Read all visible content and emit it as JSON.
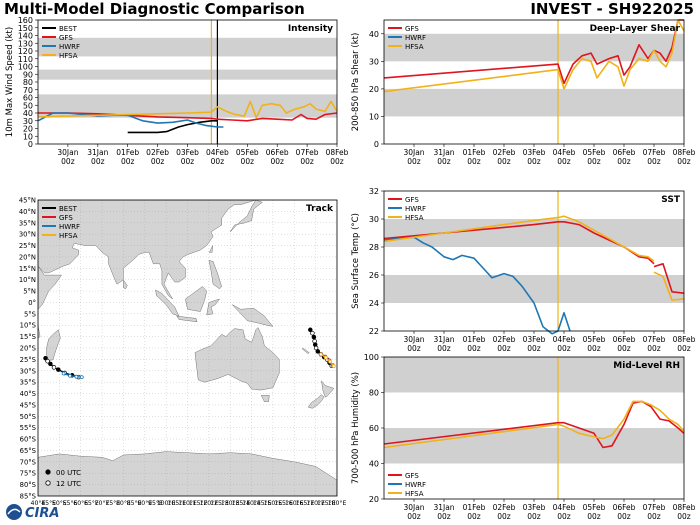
{
  "header": {
    "title": "Multi-Model Diagnostic Comparison",
    "storm_id": "INVEST - SH922025"
  },
  "footer": {
    "logo_text": "CIRA"
  },
  "colors": {
    "BEST": "#000000",
    "GFS": "#e0141e",
    "HWRF": "#1f77b4",
    "HFSA": "#f0b21a",
    "band": "#d0d0d0"
  },
  "time_axis": {
    "tick_labels": [
      "30Jan",
      "31Jan",
      "01Feb",
      "02Feb",
      "03Feb",
      "04Feb",
      "05Feb",
      "06Feb",
      "07Feb",
      "08Feb"
    ],
    "tick_sub": "00z"
  },
  "chart_data": [
    {
      "id": "intensity",
      "type": "line",
      "title": "Intensity",
      "ylabel": "10m Max Wind Speed (kt)",
      "ylim": [
        0,
        160
      ],
      "xlim": [
        -1.0,
        9.0
      ],
      "yticks": [
        0,
        10,
        20,
        30,
        40,
        50,
        60,
        70,
        80,
        90,
        100,
        110,
        120,
        130,
        140,
        150,
        160
      ],
      "bands": [
        [
          34,
          64
        ],
        [
          83,
          96
        ],
        [
          113,
          137
        ]
      ],
      "vlines": [
        {
          "x": 4.8,
          "color": "#f0b21a"
        },
        {
          "x": 5.0,
          "color": "#000000"
        }
      ],
      "legend": [
        "BEST",
        "GFS",
        "HWRF",
        "HFSA"
      ],
      "legend_position": "top-left",
      "series": [
        {
          "name": "BEST",
          "x": [
            2.0,
            2.5,
            3.0,
            3.3,
            3.7,
            4.0,
            4.4,
            4.8,
            5.0
          ],
          "y": [
            15,
            15,
            15,
            16,
            22,
            25,
            28,
            30,
            30
          ]
        },
        {
          "name": "GFS",
          "x": [
            -1.0,
            0.0,
            1.0,
            2.0,
            3.0,
            4.0,
            4.8,
            5.0,
            5.5,
            6.0,
            6.5,
            7.0,
            7.5,
            7.8,
            8.0,
            8.3,
            8.6,
            9.0
          ],
          "y": [
            40,
            40,
            39,
            37,
            35,
            34,
            33,
            32,
            31,
            30,
            33,
            32,
            31,
            38,
            33,
            32,
            38,
            40
          ]
        },
        {
          "name": "HWRF",
          "x": [
            -1.0,
            -0.5,
            0.0,
            0.5,
            1.0,
            1.5,
            2.0,
            2.5,
            3.0,
            3.5,
            4.0,
            4.3,
            4.6,
            4.8,
            5.0,
            5.2
          ],
          "y": [
            30,
            40,
            40,
            38,
            36,
            37,
            37,
            30,
            27,
            28,
            31,
            27,
            24,
            23,
            22,
            22
          ]
        },
        {
          "name": "HFSA",
          "x": [
            -1.0,
            0.0,
            1.0,
            2.0,
            3.0,
            4.0,
            4.8,
            5.0,
            5.3,
            5.6,
            5.9,
            6.1,
            6.3,
            6.5,
            6.8,
            7.1,
            7.3,
            7.6,
            7.9,
            8.1,
            8.3,
            8.6,
            8.8,
            9.0
          ],
          "y": [
            35,
            36,
            37,
            38,
            39,
            40,
            41,
            48,
            42,
            38,
            36,
            55,
            34,
            50,
            52,
            50,
            40,
            45,
            48,
            52,
            45,
            42,
            55,
            42
          ]
        }
      ]
    },
    {
      "id": "shear",
      "type": "line",
      "title": "Deep-Layer Shear",
      "ylabel": "200-850 hPa Shear (kt)",
      "ylim": [
        0,
        45
      ],
      "xlim": [
        -1.0,
        9.0
      ],
      "yticks": [
        0,
        10,
        20,
        30,
        40
      ],
      "bands": [
        [
          10,
          20
        ],
        [
          30,
          40
        ]
      ],
      "vlines": [
        {
          "x": 4.8,
          "color": "#f0b21a"
        }
      ],
      "legend": [
        "GFS",
        "HWRF",
        "HFSA"
      ],
      "legend_position": "top-left",
      "series": [
        {
          "name": "GFS",
          "x": [
            -1.0,
            4.8,
            5.0,
            5.3,
            5.6,
            5.9,
            6.1,
            6.5,
            6.8,
            7.0,
            7.2,
            7.5,
            7.8,
            8.0,
            8.2,
            8.4,
            8.6,
            8.8,
            9.0
          ],
          "y": [
            24,
            29,
            22,
            29,
            32,
            33,
            29,
            31,
            32,
            25,
            28,
            36,
            31,
            34,
            33,
            30,
            35,
            45,
            45
          ]
        },
        {
          "name": "HFSA",
          "x": [
            -1.0,
            4.8,
            5.0,
            5.3,
            5.6,
            5.9,
            6.1,
            6.5,
            6.8,
            7.0,
            7.2,
            7.5,
            7.8,
            8.0,
            8.2,
            8.4,
            8.6,
            8.8,
            9.0
          ],
          "y": [
            19,
            27,
            20,
            27,
            31,
            30,
            24,
            30,
            28,
            21,
            27,
            31,
            30,
            34,
            30,
            28,
            33,
            45,
            41
          ]
        }
      ]
    },
    {
      "id": "sst",
      "type": "line",
      "title": "SST",
      "ylabel": "Sea Surface Temp (°C)",
      "ylim": [
        22,
        32
      ],
      "xlim": [
        -1.0,
        9.0
      ],
      "yticks": [
        22,
        24,
        26,
        28,
        30,
        32
      ],
      "bands": [
        [
          24,
          26
        ],
        [
          28,
          30
        ]
      ],
      "vlines": [
        {
          "x": 4.8,
          "color": "#f0b21a"
        }
      ],
      "legend": [
        "GFS",
        "HWRF",
        "HFSA"
      ],
      "legend_position": "top-left",
      "series": [
        {
          "name": "GFS",
          "x": [
            -1.0,
            0.0,
            1.0,
            2.0,
            3.0,
            4.0,
            4.8,
            5.0,
            5.5,
            6.0,
            6.5,
            7.0,
            7.5,
            7.8,
            8.0
          ],
          "y": [
            28.6,
            28.8,
            29.0,
            29.2,
            29.4,
            29.6,
            29.8,
            29.8,
            29.6,
            29.0,
            28.5,
            28.0,
            27.3,
            27.2,
            26.8
          ],
          "gap_after": 14
        },
        {
          "name": "GFS",
          "x": [
            8.0,
            8.3,
            8.6,
            9.0
          ],
          "y": [
            26.6,
            26.8,
            24.8,
            24.7
          ]
        },
        {
          "name": "HWRF",
          "x": [
            -1.0,
            -0.5,
            0.0,
            0.3,
            0.6,
            1.0,
            1.3,
            1.6,
            2.0,
            2.3,
            2.6,
            3.0,
            3.3,
            3.6,
            4.0,
            4.3,
            4.6,
            4.8,
            5.0,
            5.2
          ],
          "y": [
            28.5,
            28.6,
            28.7,
            28.3,
            28.0,
            27.3,
            27.1,
            27.4,
            27.2,
            26.5,
            25.8,
            26.1,
            25.9,
            25.2,
            24.0,
            22.3,
            21.8,
            22.0,
            23.3,
            22.0
          ]
        },
        {
          "name": "HFSA",
          "x": [
            -1.0,
            0.0,
            1.0,
            2.0,
            3.0,
            4.0,
            4.8,
            5.0,
            5.5,
            6.0,
            6.5,
            7.0,
            7.5,
            7.8,
            8.0
          ],
          "y": [
            28.4,
            28.7,
            29.0,
            29.3,
            29.6,
            29.9,
            30.1,
            30.2,
            29.8,
            29.2,
            28.6,
            28.0,
            27.4,
            27.3,
            27.0
          ]
        },
        {
          "name": "HFSA",
          "x": [
            8.0,
            8.3,
            8.6,
            9.0
          ],
          "y": [
            26.2,
            25.9,
            24.2,
            24.3
          ]
        }
      ]
    },
    {
      "id": "rh",
      "type": "line",
      "title": "Mid-Level RH",
      "ylabel": "700-500 hPa Humidity (%)",
      "ylim": [
        20,
        100
      ],
      "xlim": [
        -1.0,
        9.0
      ],
      "yticks": [
        20,
        40,
        60,
        80,
        100
      ],
      "bands": [
        [
          40,
          60
        ],
        [
          80,
          100
        ]
      ],
      "vlines": [
        {
          "x": 4.8,
          "color": "#f0b21a"
        }
      ],
      "legend": [
        "GFS",
        "HWRF",
        "HFSA"
      ],
      "legend_position": "bottom-left",
      "series": [
        {
          "name": "GFS",
          "x": [
            -1.0,
            4.8,
            5.0,
            5.5,
            6.0,
            6.3,
            6.6,
            7.0,
            7.3,
            7.6,
            7.9,
            8.2,
            8.5,
            8.8,
            9.0
          ],
          "y": [
            51,
            63,
            63,
            60,
            57,
            49,
            50,
            62,
            74,
            75,
            72,
            65,
            64,
            60,
            57
          ]
        },
        {
          "name": "HFSA",
          "x": [
            -1.0,
            4.8,
            5.0,
            5.5,
            6.0,
            6.3,
            6.6,
            7.0,
            7.3,
            7.6,
            7.9,
            8.2,
            8.5,
            8.8,
            9.0
          ],
          "y": [
            49,
            62,
            61,
            57,
            55,
            54,
            56,
            65,
            75,
            75,
            73,
            70,
            65,
            62,
            58
          ]
        }
      ]
    },
    {
      "id": "track",
      "type": "map",
      "title": "Track",
      "lon_range": [
        40,
        180
      ],
      "lat_range": [
        -85,
        45
      ],
      "lat_labels": [
        "45°N",
        "40°N",
        "35°N",
        "30°N",
        "25°N",
        "20°N",
        "15°N",
        "10°N",
        "5°N",
        "0°",
        "5°S",
        "10°S",
        "15°S",
        "20°S",
        "25°S",
        "30°S",
        "35°S",
        "40°S",
        "45°S",
        "50°S",
        "55°S",
        "60°S",
        "65°S",
        "70°S",
        "75°S",
        "80°S",
        "85°S"
      ],
      "lon_labels": [
        "40°E",
        "45°E",
        "50°E",
        "55°E",
        "60°E",
        "65°E",
        "70°E",
        "75°E",
        "80°E",
        "85°E",
        "90°E",
        "95°E",
        "100°E",
        "105°E",
        "110°E",
        "115°E",
        "120°E",
        "125°E",
        "130°E",
        "135°E",
        "140°E",
        "145°E",
        "150°E",
        "155°E",
        "160°E",
        "165°E",
        "170°E",
        "175°E",
        "180°E"
      ],
      "legend": [
        "BEST",
        "GFS",
        "HWRF",
        "HFSA"
      ],
      "marker_legend": [
        "00 UTC",
        "12 UTC"
      ],
      "tracks": [
        {
          "name": "BEST",
          "points": [
            [
              43.5,
              -24.5
            ],
            [
              44.5,
              -25.8
            ],
            [
              45.8,
              -27.0
            ],
            [
              47.5,
              -28.5
            ],
            [
              49.5,
              -29.5
            ],
            [
              52.5,
              -31.0
            ],
            [
              56.0,
              -32.0
            ],
            [
              59.0,
              -32.8
            ]
          ]
        },
        {
          "name": "HWRF",
          "points": [
            [
              52.0,
              -31.2
            ],
            [
              55.0,
              -32.2
            ],
            [
              58.0,
              -32.6
            ],
            [
              60.5,
              -32.8
            ]
          ]
        },
        {
          "name": "BEST",
          "points": [
            [
              167.5,
              -12.0
            ],
            [
              168.5,
              -13.5
            ],
            [
              169.2,
              -15.2
            ],
            [
              169.5,
              -17.0
            ],
            [
              169.8,
              -18.5
            ],
            [
              170.2,
              -20.0
            ],
            [
              171.0,
              -21.5
            ],
            [
              172.5,
              -22.8
            ],
            [
              174.0,
              -24.0
            ],
            [
              175.5,
              -25.2
            ],
            [
              176.5,
              -26.5
            ],
            [
              177.5,
              -27.8
            ]
          ]
        },
        {
          "name": "GFS",
          "points": [
            [
              172.5,
              -22.8
            ],
            [
              174.5,
              -23.8
            ],
            [
              176.5,
              -25.5
            ],
            [
              178.0,
              -27.5
            ]
          ]
        },
        {
          "name": "HFSA",
          "points": [
            [
              172.5,
              -22.8
            ],
            [
              174.8,
              -24.2
            ],
            [
              176.8,
              -26.0
            ],
            [
              178.5,
              -28.0
            ]
          ]
        }
      ]
    }
  ]
}
